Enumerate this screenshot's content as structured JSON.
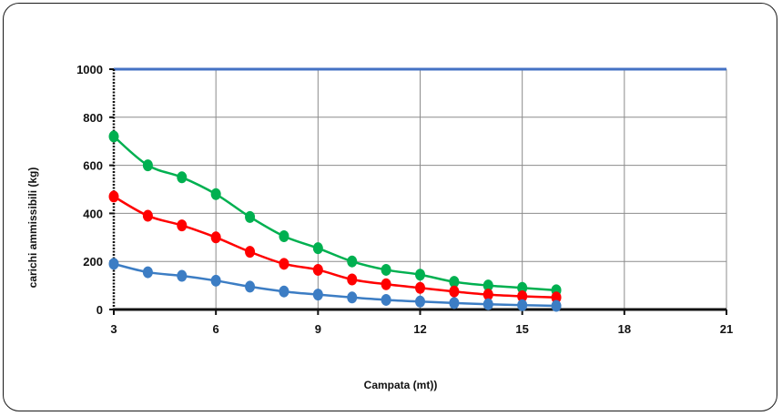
{
  "chart_data": {
    "type": "line",
    "title": "",
    "xlabel": "Campata (mt))",
    "ylabel": "carichi ammissibili  (kg)",
    "xlim": [
      3,
      21
    ],
    "ylim": [
      0,
      1000
    ],
    "x_ticks": [
      "3",
      "6",
      "9",
      "12",
      "15",
      "18",
      "21"
    ],
    "y_ticks": [
      "0",
      "200",
      "400",
      "600",
      "800",
      "1000"
    ],
    "grid": true,
    "legend": "none",
    "x": [
      3,
      4,
      5,
      6,
      7,
      8,
      9,
      10,
      11,
      12,
      13,
      14,
      15,
      16
    ],
    "series": [
      {
        "color": "#00b050",
        "values": [
          720,
          600,
          550,
          480,
          385,
          305,
          255,
          200,
          165,
          145,
          115,
          100,
          90,
          80
        ]
      },
      {
        "color": "#ff0000",
        "values": [
          470,
          390,
          350,
          300,
          240,
          190,
          165,
          125,
          105,
          90,
          75,
          62,
          55,
          50
        ]
      },
      {
        "color": "#3c7dc4",
        "values": [
          190,
          155,
          140,
          120,
          95,
          75,
          62,
          50,
          40,
          33,
          27,
          22,
          18,
          15
        ]
      }
    ],
    "reference_line": {
      "y": 1000,
      "color": "#4472c4"
    }
  }
}
